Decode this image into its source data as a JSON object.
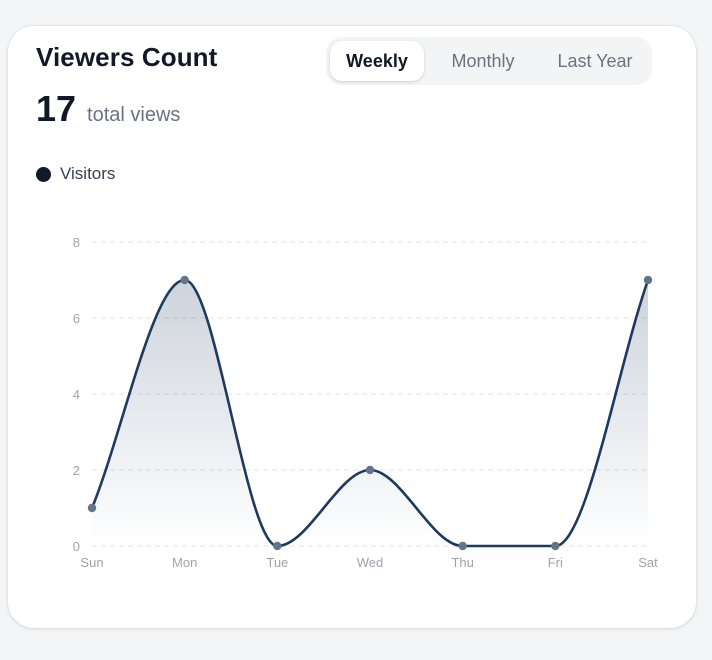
{
  "card": {
    "title": "Viewers Count",
    "total_number": "17",
    "total_label": "total views"
  },
  "tabs": [
    {
      "label": "Weekly",
      "active": true
    },
    {
      "label": "Monthly",
      "active": false
    },
    {
      "label": "Last Year",
      "active": false
    }
  ],
  "legend": {
    "label": "Visitors",
    "color": "#111827"
  },
  "colors": {
    "line": "#1e3a5f",
    "point": "#64748b",
    "grid": "#e5e7eb",
    "tick": "#9ca3af"
  },
  "chart_data": {
    "type": "area",
    "title": "",
    "xlabel": "",
    "ylabel": "",
    "categories": [
      "Sun",
      "Mon",
      "Tue",
      "Wed",
      "Thu",
      "Fri",
      "Sat"
    ],
    "series": [
      {
        "name": "Visitors",
        "values": [
          1,
          7,
          0,
          2,
          0,
          0,
          7
        ]
      }
    ],
    "ylim": [
      0,
      8
    ],
    "yticks": [
      0,
      2,
      4,
      6,
      8
    ],
    "grid": true,
    "legend": "top-left",
    "smooth": true
  }
}
